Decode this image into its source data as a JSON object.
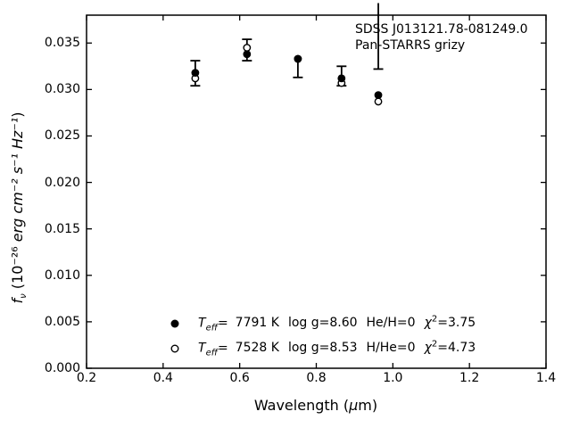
{
  "figure": {
    "background": "#ffffff",
    "foreground": "#000000"
  },
  "annotation": {
    "line1": "SDSS J013121.78-081249.0",
    "line2": "Pan-STARRS grizy"
  },
  "axes": {
    "xlabel_parts": {
      "pre": "Wavelength (",
      "mu": "μ",
      "post": "m)"
    },
    "ylabel_parts": {
      "f": "f",
      "nu": "ν",
      "open": " (10⁻²⁶ ",
      "units": "erg cm⁻² s⁻¹ Hz⁻¹",
      "close": ")"
    }
  },
  "legend": {
    "rows": [
      {
        "marker": "filled-circle",
        "t": "T",
        "t_sub": "eff",
        "eq": "=",
        "temp": "7791 K",
        "logg": "log g=8.60",
        "comp": "He/H=0",
        "chi": "χ",
        "chi_sup": "2",
        "chi_val": "=3.75"
      },
      {
        "marker": "open-circle",
        "t": "T",
        "t_sub": "eff",
        "eq": "=",
        "temp": "7528 K",
        "logg": "log g=8.53",
        "comp": "H/He=0",
        "chi": "χ",
        "chi_sup": "2",
        "chi_val": "=4.73"
      }
    ]
  },
  "chart_data": {
    "type": "scatter",
    "xlabel": "Wavelength (μm)",
    "ylabel": "f_ν (10⁻²⁶ erg cm⁻² s⁻¹ Hz⁻¹)",
    "xlim": [
      0.2,
      1.4
    ],
    "ylim": [
      0.0,
      0.038
    ],
    "xticks": [
      "0.2",
      "0.4",
      "0.6",
      "0.8",
      "1.0",
      "1.2",
      "1.4"
    ],
    "yticks": [
      "0.000",
      "0.005",
      "0.010",
      "0.015",
      "0.020",
      "0.025",
      "0.030",
      "0.035"
    ],
    "grid": false,
    "tick_style": "inward, all four spines",
    "legend_position": "inside lower-left-of-center",
    "annotation_text": [
      "SDSS J013121.78-081249.0",
      "Pan-STARRS grizy"
    ],
    "bands": [
      "g",
      "r",
      "i",
      "z",
      "y"
    ],
    "series": [
      {
        "name": "Teff= 7791 K  log g=8.60  He/H=0  χ2=3.75",
        "marker": "filled-circle",
        "x": [
          0.484,
          0.619,
          0.752,
          0.866,
          0.962
        ],
        "y": [
          0.0318,
          0.0338,
          0.0333,
          0.0312,
          0.0294
        ]
      },
      {
        "name": "Teff= 7528 K  log g=8.53  H/He=0  χ2=4.73",
        "marker": "open-circle",
        "x": [
          0.484,
          0.619,
          0.752,
          0.866,
          0.962
        ],
        "y": [
          0.0312,
          0.0345,
          0.0333,
          0.0307,
          0.0287
        ]
      }
    ],
    "errorbars": [
      {
        "band": "g",
        "x": 0.484,
        "ylo": 0.0304,
        "yhi": 0.0331,
        "cap_top": true
      },
      {
        "band": "r",
        "x": 0.619,
        "ylo": 0.0331,
        "yhi": 0.0354,
        "cap_top": true
      },
      {
        "band": "i",
        "x": 0.752,
        "ylo": 0.0313,
        "yhi": 0.0334,
        "cap_top": false
      },
      {
        "band": "z",
        "x": 0.866,
        "ylo": 0.0304,
        "yhi": 0.0325,
        "cap_top": true
      },
      {
        "band": "y",
        "x": 0.962,
        "ylo": 0.0322,
        "yhi": 0.0393,
        "cap_top": false
      }
    ]
  }
}
